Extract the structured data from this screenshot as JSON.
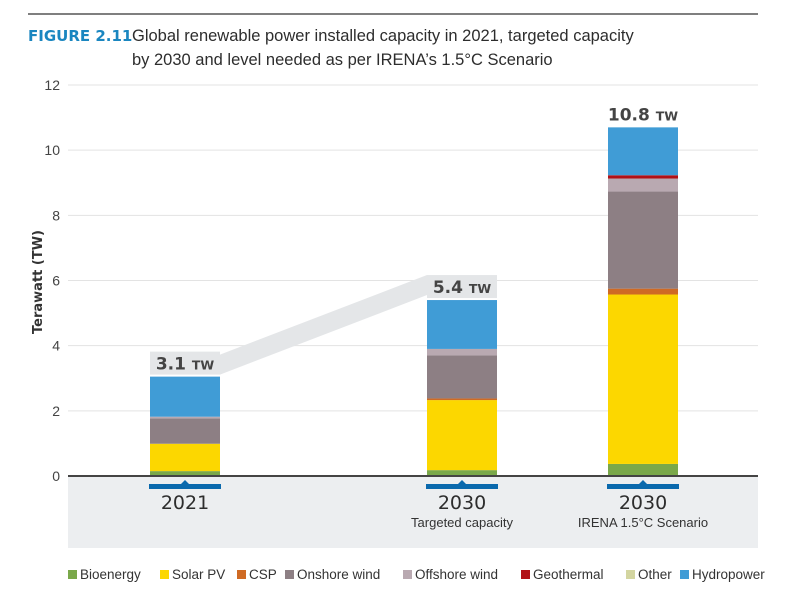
{
  "figure": {
    "label": "FIGURE 2.11",
    "title_line1": "Global renewable power installed capacity in 2021, targeted capacity",
    "title_line2": "by 2030 and level needed as per IRENA’s 1.5°C Scenario"
  },
  "chart_data": {
    "type": "bar",
    "stacked": true,
    "title": "Global renewable power installed capacity in 2021, targeted capacity by 2030 and level needed as per IRENA’s 1.5°C Scenario",
    "xlabel": "",
    "ylabel": "Terawatt (TW)",
    "ylim": [
      0,
      12
    ],
    "yticks": [
      0,
      2,
      4,
      6,
      8,
      10,
      12
    ],
    "grid": true,
    "legend_position": "bottom",
    "categories": [
      {
        "main": "2021",
        "sub": ""
      },
      {
        "main": "2030",
        "sub": "Targeted capacity"
      },
      {
        "main": "2030",
        "sub": "IRENA 1.5°C Scenario"
      }
    ],
    "totals": [
      {
        "value": "3.1",
        "unit": "TW"
      },
      {
        "value": "5.4",
        "unit": "TW"
      },
      {
        "value": "10.8",
        "unit": "TW"
      }
    ],
    "series": [
      {
        "name": "Bioenergy",
        "color": "#7aa84a",
        "values": [
          0.15,
          0.18,
          0.37
        ]
      },
      {
        "name": "Solar PV",
        "color": "#fcd700",
        "values": [
          0.84,
          2.15,
          5.2
        ]
      },
      {
        "name": "CSP",
        "color": "#cf6a24",
        "values": [
          0.0,
          0.05,
          0.18
        ]
      },
      {
        "name": "Onshore wind",
        "color": "#8d7f84",
        "values": [
          0.78,
          1.32,
          2.98
        ]
      },
      {
        "name": "Offshore wind",
        "color": "#b9a9b1",
        "values": [
          0.05,
          0.2,
          0.4
        ]
      },
      {
        "name": "Geothermal",
        "color": "#b11116",
        "values": [
          0.0,
          0.0,
          0.1
        ]
      },
      {
        "name": "Other",
        "color": "#d3d5a0",
        "values": [
          0.0,
          0.0,
          0.0
        ]
      },
      {
        "name": "Hydropower",
        "color": "#409cd6",
        "values": [
          1.23,
          1.5,
          1.47
        ]
      }
    ]
  },
  "colors": {
    "accent": "#1a86c0",
    "category_marker": "#0a69ad",
    "connector_band": "#e4e6e8",
    "baseline_band": "#eceef0"
  }
}
